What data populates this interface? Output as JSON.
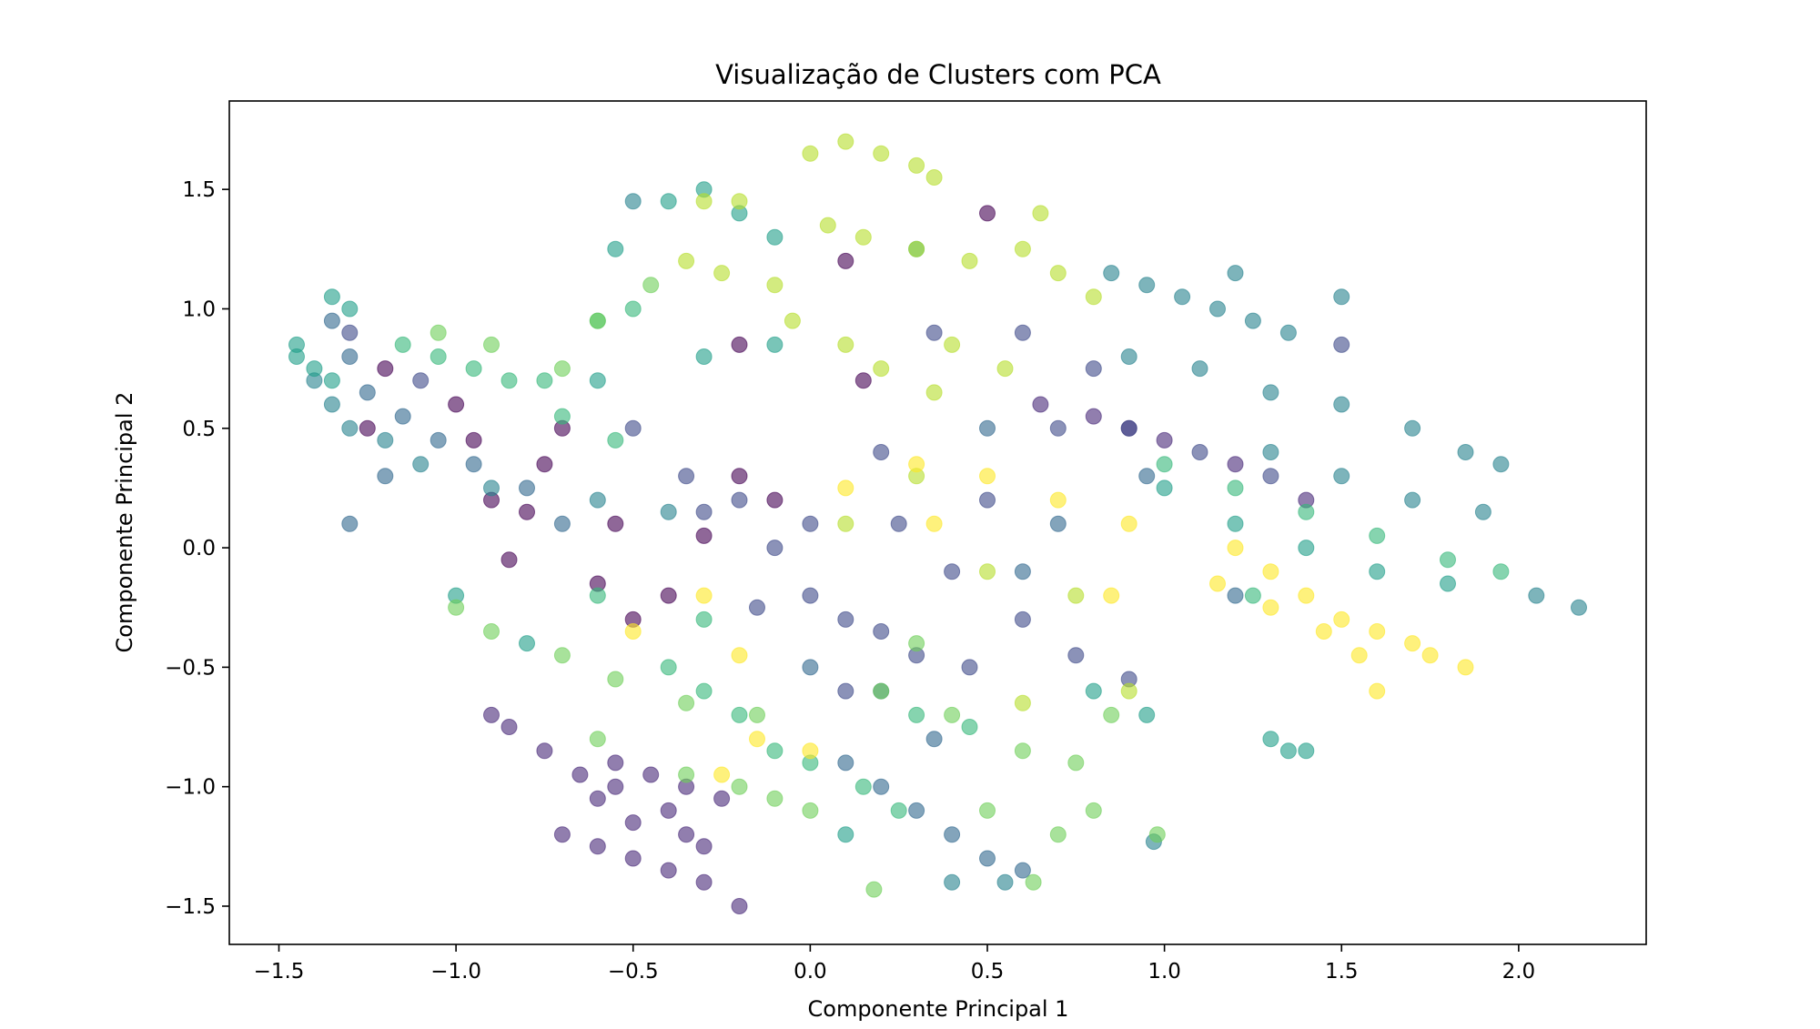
{
  "chart_data": {
    "type": "scatter",
    "title": "Visualização de Clusters com PCA",
    "xlabel": "Componente Principal 1",
    "ylabel": "Componente Principal 2",
    "xlim": [
      -1.64,
      2.36
    ],
    "ylim": [
      -1.66,
      1.87
    ],
    "xticks": [
      -1.5,
      -1.0,
      -0.5,
      0.0,
      0.5,
      1.0,
      1.5,
      2.0
    ],
    "xtick_labels": [
      "−1.5",
      "−1.0",
      "−0.5",
      "0.0",
      "0.5",
      "1.0",
      "1.5",
      "2.0"
    ],
    "yticks": [
      -1.5,
      -1.0,
      -0.5,
      0.0,
      0.5,
      1.0,
      1.5
    ],
    "ytick_labels": [
      "−1.5",
      "−1.0",
      "−0.5",
      "0.0",
      "0.5",
      "1.0",
      "1.5"
    ],
    "grid": false,
    "legend": false,
    "colormap": "viridis",
    "marker_alpha": 0.6,
    "cluster_colors": [
      "#440154",
      "#482878",
      "#3e4989",
      "#31688e",
      "#26828e",
      "#1f9e89",
      "#35b779",
      "#6ece58",
      "#b5de2b",
      "#fde725"
    ],
    "series": [
      {
        "cluster": 0,
        "color": "#440154",
        "points": [
          [
            -0.95,
            0.45
          ],
          [
            -0.9,
            0.2
          ],
          [
            -1.2,
            0.75
          ],
          [
            -1.0,
            0.6
          ],
          [
            -0.75,
            0.35
          ],
          [
            -0.7,
            0.5
          ],
          [
            -0.55,
            0.1
          ],
          [
            -0.4,
            -0.2
          ],
          [
            -0.6,
            -0.15
          ],
          [
            -1.25,
            0.5
          ],
          [
            -0.85,
            -0.05
          ],
          [
            -0.3,
            0.05
          ],
          [
            -0.5,
            -0.3
          ],
          [
            -0.2,
            0.3
          ],
          [
            -0.1,
            0.2
          ],
          [
            0.1,
            1.2
          ],
          [
            0.15,
            0.7
          ],
          [
            0.5,
            1.4
          ],
          [
            -0.2,
            0.85
          ],
          [
            -0.8,
            0.15
          ]
        ]
      },
      {
        "cluster": 1,
        "color": "#482878",
        "points": [
          [
            -0.9,
            -0.7
          ],
          [
            -0.85,
            -0.75
          ],
          [
            -0.75,
            -0.85
          ],
          [
            -0.65,
            -0.95
          ],
          [
            -0.55,
            -1.0
          ],
          [
            -0.4,
            -1.1
          ],
          [
            -0.6,
            -1.05
          ],
          [
            -0.5,
            -1.15
          ],
          [
            -0.3,
            -1.25
          ],
          [
            -0.7,
            -1.2
          ],
          [
            -0.6,
            -1.25
          ],
          [
            -0.5,
            -1.3
          ],
          [
            -0.4,
            -1.35
          ],
          [
            -0.3,
            -1.4
          ],
          [
            -0.2,
            -1.5
          ],
          [
            -0.55,
            -0.9
          ],
          [
            -0.45,
            -0.95
          ],
          [
            -0.35,
            -1.0
          ],
          [
            -0.25,
            -1.05
          ],
          [
            -0.35,
            -1.2
          ],
          [
            0.8,
            0.55
          ],
          [
            1.0,
            0.45
          ],
          [
            1.2,
            0.35
          ],
          [
            1.4,
            0.2
          ],
          [
            0.9,
            0.5
          ],
          [
            0.65,
            0.6
          ]
        ]
      },
      {
        "cluster": 2,
        "color": "#3e4989",
        "points": [
          [
            -0.5,
            0.5
          ],
          [
            -0.35,
            0.3
          ],
          [
            -0.2,
            0.2
          ],
          [
            -0.1,
            0.0
          ],
          [
            0.0,
            -0.2
          ],
          [
            0.1,
            -0.3
          ],
          [
            0.2,
            -0.35
          ],
          [
            0.3,
            -0.45
          ],
          [
            -0.3,
            0.15
          ],
          [
            0.0,
            0.1
          ],
          [
            0.25,
            0.1
          ],
          [
            0.4,
            -0.1
          ],
          [
            0.5,
            0.2
          ],
          [
            0.7,
            0.5
          ],
          [
            0.9,
            0.5
          ],
          [
            1.1,
            0.4
          ],
          [
            1.3,
            0.3
          ],
          [
            0.6,
            -0.3
          ],
          [
            0.75,
            -0.45
          ],
          [
            0.9,
            -0.55
          ],
          [
            0.2,
            0.4
          ],
          [
            0.35,
            0.9
          ],
          [
            0.6,
            0.9
          ],
          [
            0.8,
            0.75
          ],
          [
            1.5,
            0.85
          ],
          [
            0.1,
            -0.6
          ],
          [
            -0.15,
            -0.25
          ],
          [
            0.45,
            -0.5
          ],
          [
            -1.3,
            0.9
          ],
          [
            -1.1,
            0.7
          ]
        ]
      },
      {
        "cluster": 3,
        "color": "#31688e",
        "points": [
          [
            -1.35,
            0.95
          ],
          [
            -1.3,
            0.8
          ],
          [
            -1.25,
            0.65
          ],
          [
            -1.15,
            0.55
          ],
          [
            -1.05,
            0.45
          ],
          [
            -0.95,
            0.35
          ],
          [
            -0.8,
            0.25
          ],
          [
            -0.7,
            0.1
          ],
          [
            -1.2,
            0.3
          ],
          [
            -1.3,
            0.1
          ],
          [
            0.1,
            -0.9
          ],
          [
            0.2,
            -1.0
          ],
          [
            0.3,
            -1.1
          ],
          [
            0.4,
            -1.2
          ],
          [
            0.5,
            -1.3
          ],
          [
            0.6,
            -1.35
          ],
          [
            0.2,
            -0.6
          ],
          [
            0.35,
            -0.8
          ],
          [
            0.0,
            -0.5
          ],
          [
            0.7,
            0.1
          ],
          [
            0.95,
            0.3
          ],
          [
            1.2,
            -0.2
          ],
          [
            0.5,
            0.5
          ],
          [
            0.6,
            -0.1
          ]
        ]
      },
      {
        "cluster": 4,
        "color": "#26828e",
        "points": [
          [
            0.85,
            1.15
          ],
          [
            0.95,
            1.1
          ],
          [
            1.05,
            1.05
          ],
          [
            1.15,
            1.0
          ],
          [
            1.25,
            0.95
          ],
          [
            1.35,
            0.9
          ],
          [
            0.9,
            0.8
          ],
          [
            1.1,
            0.75
          ],
          [
            1.3,
            0.65
          ],
          [
            1.5,
            0.6
          ],
          [
            1.7,
            0.5
          ],
          [
            1.85,
            0.4
          ],
          [
            1.3,
            0.4
          ],
          [
            1.5,
            0.3
          ],
          [
            1.7,
            0.2
          ],
          [
            1.9,
            0.15
          ],
          [
            1.95,
            0.35
          ],
          [
            2.05,
            -0.2
          ],
          [
            2.17,
            -0.25
          ],
          [
            1.5,
            1.05
          ],
          [
            1.2,
            1.15
          ],
          [
            -1.4,
            0.7
          ],
          [
            -1.35,
            0.6
          ],
          [
            -1.3,
            0.5
          ],
          [
            -1.2,
            0.45
          ],
          [
            -1.1,
            0.35
          ],
          [
            -0.9,
            0.25
          ],
          [
            -0.6,
            0.2
          ],
          [
            -0.4,
            0.15
          ],
          [
            0.4,
            -1.4
          ],
          [
            0.55,
            -1.4
          ],
          [
            -0.5,
            1.45
          ],
          [
            0.97,
            -1.23
          ]
        ]
      },
      {
        "cluster": 5,
        "color": "#1f9e89",
        "points": [
          [
            -1.45,
            0.85
          ],
          [
            -1.4,
            0.75
          ],
          [
            -1.35,
            0.7
          ],
          [
            -1.45,
            0.8
          ],
          [
            -1.3,
            1.0
          ],
          [
            -1.35,
            1.05
          ],
          [
            -0.4,
            1.45
          ],
          [
            -0.3,
            1.5
          ],
          [
            -0.2,
            1.4
          ],
          [
            -0.1,
            1.3
          ],
          [
            -0.55,
            1.25
          ],
          [
            0.3,
            1.25
          ],
          [
            -0.3,
            0.8
          ],
          [
            -0.1,
            0.85
          ],
          [
            -0.6,
            0.7
          ],
          [
            1.0,
            0.25
          ],
          [
            1.2,
            0.1
          ],
          [
            1.4,
            0.0
          ],
          [
            1.6,
            -0.1
          ],
          [
            1.8,
            -0.15
          ],
          [
            0.8,
            -0.6
          ],
          [
            0.95,
            -0.7
          ],
          [
            1.3,
            -0.8
          ],
          [
            1.35,
            -0.85
          ],
          [
            1.4,
            -0.85
          ],
          [
            -1.0,
            -0.2
          ],
          [
            -0.8,
            -0.4
          ],
          [
            0.1,
            -1.2
          ]
        ]
      },
      {
        "cluster": 6,
        "color": "#35b779",
        "points": [
          [
            -1.15,
            0.85
          ],
          [
            -1.05,
            0.8
          ],
          [
            -0.95,
            0.75
          ],
          [
            -0.85,
            0.7
          ],
          [
            -0.75,
            0.7
          ],
          [
            -0.4,
            -0.5
          ],
          [
            -0.3,
            -0.6
          ],
          [
            -0.2,
            -0.7
          ],
          [
            -0.1,
            -0.85
          ],
          [
            0.0,
            -0.9
          ],
          [
            0.15,
            -1.0
          ],
          [
            0.25,
            -1.1
          ],
          [
            -0.3,
            -0.3
          ],
          [
            -0.6,
            -0.2
          ],
          [
            1.0,
            0.35
          ],
          [
            1.2,
            0.25
          ],
          [
            1.4,
            0.15
          ],
          [
            1.6,
            0.05
          ],
          [
            1.8,
            -0.05
          ],
          [
            1.95,
            -0.1
          ],
          [
            1.25,
            -0.2
          ],
          [
            -0.7,
            0.55
          ],
          [
            -0.55,
            0.45
          ],
          [
            0.3,
            -0.7
          ],
          [
            0.45,
            -0.75
          ],
          [
            -0.6,
            0.95
          ],
          [
            -0.5,
            1.0
          ]
        ]
      },
      {
        "cluster": 7,
        "color": "#6ece58",
        "points": [
          [
            -1.05,
            0.9
          ],
          [
            -0.9,
            0.85
          ],
          [
            -0.7,
            0.75
          ],
          [
            -1.0,
            -0.25
          ],
          [
            -0.9,
            -0.35
          ],
          [
            -0.7,
            -0.45
          ],
          [
            -0.55,
            -0.55
          ],
          [
            -0.35,
            -0.65
          ],
          [
            -0.15,
            -0.7
          ],
          [
            -0.35,
            -0.95
          ],
          [
            -0.2,
            -1.0
          ],
          [
            -0.1,
            -1.05
          ],
          [
            0.0,
            -1.1
          ],
          [
            0.2,
            -0.6
          ],
          [
            0.4,
            -0.7
          ],
          [
            0.6,
            -0.85
          ],
          [
            0.75,
            -0.9
          ],
          [
            0.5,
            -1.1
          ],
          [
            0.7,
            -1.2
          ],
          [
            0.8,
            -1.1
          ],
          [
            0.3,
            -0.4
          ],
          [
            -0.6,
            -0.8
          ],
          [
            0.85,
            -0.7
          ],
          [
            -0.45,
            1.1
          ],
          [
            -0.6,
            0.95
          ],
          [
            0.18,
            -1.43
          ],
          [
            0.63,
            -1.4
          ],
          [
            0.98,
            -1.2
          ]
        ]
      },
      {
        "cluster": 8,
        "color": "#b5de2b",
        "points": [
          [
            0.0,
            1.65
          ],
          [
            0.1,
            1.7
          ],
          [
            0.2,
            1.65
          ],
          [
            0.3,
            1.6
          ],
          [
            0.35,
            1.55
          ],
          [
            0.05,
            1.35
          ],
          [
            0.15,
            1.3
          ],
          [
            0.3,
            1.25
          ],
          [
            0.45,
            1.2
          ],
          [
            0.6,
            1.25
          ],
          [
            0.7,
            1.15
          ],
          [
            0.8,
            1.05
          ],
          [
            -0.35,
            1.2
          ],
          [
            -0.25,
            1.15
          ],
          [
            -0.1,
            1.1
          ],
          [
            -0.05,
            0.95
          ],
          [
            0.1,
            0.85
          ],
          [
            0.2,
            0.75
          ],
          [
            0.35,
            0.65
          ],
          [
            0.4,
            0.85
          ],
          [
            0.55,
            0.75
          ],
          [
            -0.3,
            1.45
          ],
          [
            -0.2,
            1.45
          ],
          [
            0.65,
            1.4
          ],
          [
            0.5,
            -0.1
          ],
          [
            0.3,
            0.3
          ],
          [
            0.1,
            0.1
          ],
          [
            0.75,
            -0.2
          ],
          [
            0.9,
            -0.6
          ],
          [
            0.6,
            -0.65
          ]
        ]
      },
      {
        "cluster": 9,
        "color": "#fde725",
        "points": [
          [
            1.2,
            0.0
          ],
          [
            1.3,
            -0.1
          ],
          [
            1.4,
            -0.2
          ],
          [
            1.5,
            -0.3
          ],
          [
            1.6,
            -0.35
          ],
          [
            1.7,
            -0.4
          ],
          [
            1.75,
            -0.45
          ],
          [
            1.85,
            -0.5
          ],
          [
            1.15,
            -0.15
          ],
          [
            1.3,
            -0.25
          ],
          [
            1.45,
            -0.35
          ],
          [
            1.55,
            -0.45
          ],
          [
            0.9,
            0.1
          ],
          [
            0.7,
            0.2
          ],
          [
            0.5,
            0.3
          ],
          [
            0.3,
            0.35
          ],
          [
            0.1,
            0.25
          ],
          [
            -0.3,
            -0.2
          ],
          [
            -0.5,
            -0.35
          ],
          [
            -0.2,
            -0.45
          ],
          [
            -0.25,
            -0.95
          ],
          [
            -0.15,
            -0.8
          ],
          [
            0.0,
            -0.85
          ],
          [
            0.85,
            -0.2
          ],
          [
            1.6,
            -0.6
          ],
          [
            0.35,
            0.1
          ]
        ]
      }
    ]
  }
}
